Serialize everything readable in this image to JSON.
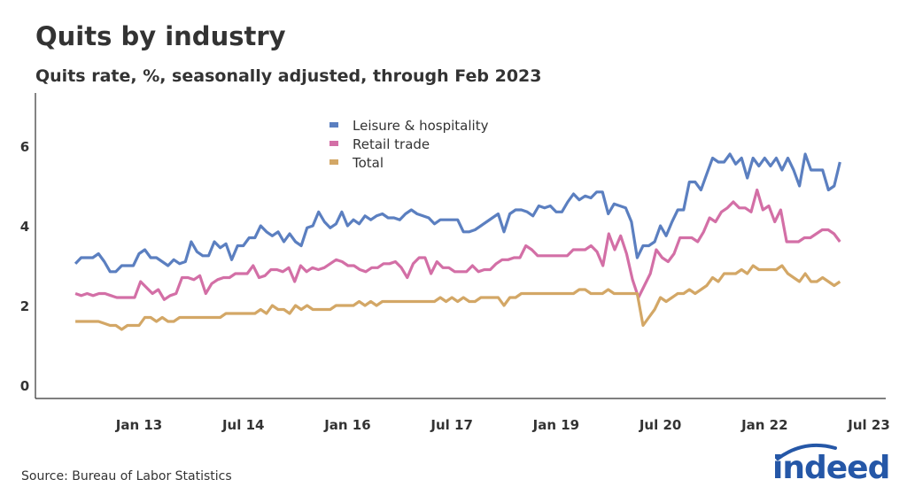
{
  "title": "Quits by industry",
  "subtitle": "Quits rate, %, seasonally adjusted, through Feb 2023",
  "source": "Source: Bureau of Labor Statistics",
  "logo_text": "indeed",
  "colors": {
    "leisure": "#5b7fc0",
    "retail": "#d36fa6",
    "total": "#d3a766",
    "text": "#333333",
    "brand": "#2557a7"
  },
  "chart_data": {
    "type": "line",
    "title": "Quits by industry",
    "subtitle": "Quits rate, %, seasonally adjusted, through Feb 2023",
    "x_start": "Feb 2012",
    "x_end": "Feb 2023",
    "frequency": "monthly",
    "x_ticks": [
      "Jan 13",
      "Jul 14",
      "Jan 16",
      "Jul 17",
      "Jan 19",
      "Jul 20",
      "Jan 22",
      "Jul 23"
    ],
    "y_ticks": [
      "0",
      "2",
      "4",
      "6"
    ],
    "ylim": [
      0,
      7.3
    ],
    "grid": false,
    "legend_position": "top-center",
    "series": [
      {
        "name": "Leisure & hospitality",
        "color": "#5b7fc0",
        "values": [
          3.05,
          3.2,
          3.2,
          3.2,
          3.3,
          3.1,
          2.85,
          2.85,
          3.0,
          3.0,
          3.0,
          3.3,
          3.4,
          3.2,
          3.2,
          3.1,
          3.0,
          3.15,
          3.05,
          3.1,
          3.6,
          3.35,
          3.25,
          3.25,
          3.6,
          3.45,
          3.55,
          3.15,
          3.5,
          3.5,
          3.7,
          3.7,
          4.0,
          3.85,
          3.75,
          3.85,
          3.6,
          3.8,
          3.6,
          3.5,
          3.95,
          4.0,
          4.35,
          4.1,
          3.95,
          4.05,
          4.35,
          4.0,
          4.15,
          4.05,
          4.25,
          4.15,
          4.25,
          4.3,
          4.2,
          4.2,
          4.15,
          4.3,
          4.4,
          4.3,
          4.25,
          4.2,
          4.05,
          4.15,
          4.15,
          4.15,
          4.15,
          3.85,
          3.85,
          3.9,
          4.0,
          4.1,
          4.2,
          4.3,
          3.85,
          4.3,
          4.4,
          4.4,
          4.35,
          4.25,
          4.5,
          4.45,
          4.5,
          4.35,
          4.35,
          4.6,
          4.8,
          4.65,
          4.75,
          4.7,
          4.85,
          4.85,
          4.3,
          4.55,
          4.5,
          4.45,
          4.1,
          3.2,
          3.5,
          3.5,
          3.6,
          4.0,
          3.75,
          4.1,
          4.4,
          4.4,
          5.1,
          5.1,
          4.9,
          5.3,
          5.7,
          5.6,
          5.6,
          5.8,
          5.55,
          5.7,
          5.2,
          5.7,
          5.5,
          5.7,
          5.5,
          5.7,
          5.4,
          5.7,
          5.4,
          5.0,
          5.8,
          5.4,
          5.4,
          5.4,
          4.9,
          5.0,
          5.6
        ]
      },
      {
        "name": "Retail trade",
        "color": "#d36fa6",
        "values": [
          2.3,
          2.25,
          2.3,
          2.25,
          2.3,
          2.3,
          2.25,
          2.2,
          2.2,
          2.2,
          2.2,
          2.6,
          2.45,
          2.3,
          2.4,
          2.15,
          2.25,
          2.3,
          2.7,
          2.7,
          2.65,
          2.75,
          2.3,
          2.55,
          2.65,
          2.7,
          2.7,
          2.8,
          2.8,
          2.8,
          3.0,
          2.7,
          2.75,
          2.9,
          2.9,
          2.85,
          2.95,
          2.6,
          3.0,
          2.85,
          2.95,
          2.9,
          2.95,
          3.05,
          3.15,
          3.1,
          3.0,
          3.0,
          2.9,
          2.85,
          2.95,
          2.95,
          3.05,
          3.05,
          3.1,
          2.95,
          2.7,
          3.05,
          3.2,
          3.2,
          2.8,
          3.1,
          2.95,
          2.95,
          2.85,
          2.85,
          2.85,
          3.0,
          2.85,
          2.9,
          2.9,
          3.05,
          3.15,
          3.15,
          3.2,
          3.2,
          3.5,
          3.4,
          3.25,
          3.25,
          3.25,
          3.25,
          3.25,
          3.25,
          3.4,
          3.4,
          3.4,
          3.5,
          3.35,
          3.0,
          3.8,
          3.4,
          3.75,
          3.3,
          2.65,
          2.2,
          2.5,
          2.8,
          3.4,
          3.2,
          3.1,
          3.3,
          3.7,
          3.7,
          3.7,
          3.6,
          3.85,
          4.2,
          4.1,
          4.35,
          4.45,
          4.6,
          4.45,
          4.45,
          4.35,
          4.9,
          4.4,
          4.5,
          4.1,
          4.4,
          3.6,
          3.6,
          3.6,
          3.7,
          3.7,
          3.8,
          3.9,
          3.9,
          3.8,
          3.6
        ]
      },
      {
        "name": "Total",
        "color": "#d3a766",
        "values": [
          1.6,
          1.6,
          1.6,
          1.6,
          1.6,
          1.55,
          1.5,
          1.5,
          1.4,
          1.5,
          1.5,
          1.5,
          1.7,
          1.7,
          1.6,
          1.7,
          1.6,
          1.6,
          1.7,
          1.7,
          1.7,
          1.7,
          1.7,
          1.7,
          1.7,
          1.7,
          1.8,
          1.8,
          1.8,
          1.8,
          1.8,
          1.8,
          1.9,
          1.8,
          2.0,
          1.9,
          1.9,
          1.8,
          2.0,
          1.9,
          2.0,
          1.9,
          1.9,
          1.9,
          1.9,
          2.0,
          2.0,
          2.0,
          2.0,
          2.1,
          2.0,
          2.1,
          2.0,
          2.1,
          2.1,
          2.1,
          2.1,
          2.1,
          2.1,
          2.1,
          2.1,
          2.1,
          2.1,
          2.2,
          2.1,
          2.2,
          2.1,
          2.2,
          2.1,
          2.1,
          2.2,
          2.2,
          2.2,
          2.2,
          2.0,
          2.2,
          2.2,
          2.3,
          2.3,
          2.3,
          2.3,
          2.3,
          2.3,
          2.3,
          2.3,
          2.3,
          2.3,
          2.4,
          2.4,
          2.3,
          2.3,
          2.3,
          2.4,
          2.3,
          2.3,
          2.3,
          2.3,
          2.3,
          1.5,
          1.7,
          1.9,
          2.2,
          2.1,
          2.2,
          2.3,
          2.3,
          2.4,
          2.3,
          2.4,
          2.5,
          2.7,
          2.6,
          2.8,
          2.8,
          2.8,
          2.9,
          2.8,
          3.0,
          2.9,
          2.9,
          2.9,
          2.9,
          3.0,
          2.8,
          2.7,
          2.6,
          2.8,
          2.6,
          2.6,
          2.7,
          2.6,
          2.5,
          2.6
        ]
      }
    ]
  }
}
